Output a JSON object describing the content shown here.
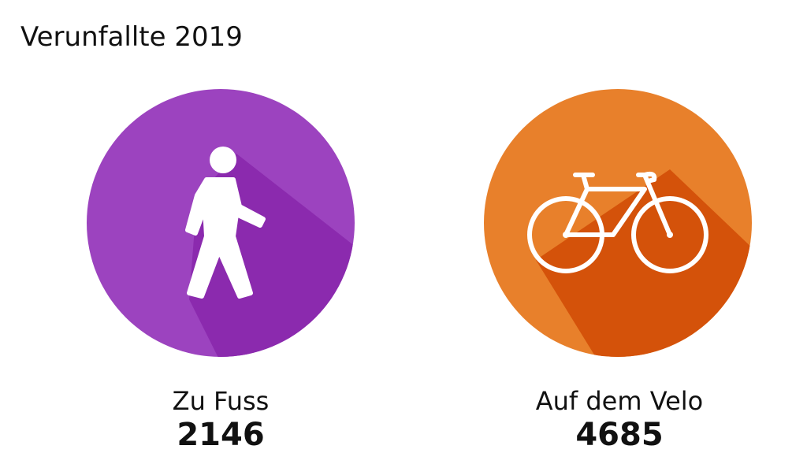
{
  "title": "Verunfallte 2019",
  "items": [
    {
      "label": "Zu Fuss",
      "value": "2146"
    },
    {
      "label": "Auf dem Velo",
      "value": "4685"
    }
  ]
}
